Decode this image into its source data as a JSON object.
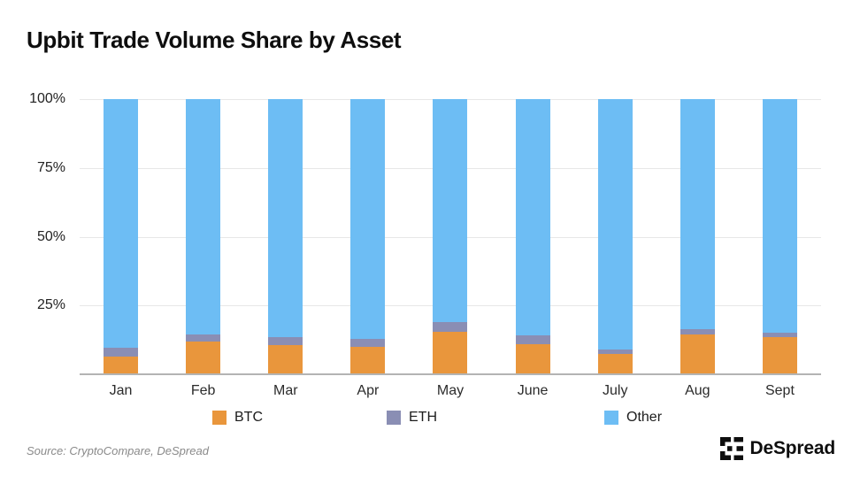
{
  "title": "Upbit Trade Volume Share by Asset",
  "source_note": "Source: CryptoCompare, DeSpread",
  "brand": {
    "name": "DeSpread"
  },
  "colors": {
    "btc": "#e9963c",
    "eth": "#8a8eb4",
    "other": "#6dbdf4",
    "grid": "#e7e7e7",
    "axis": "#b4b4b4"
  },
  "chart_data": {
    "type": "bar",
    "stacked": true,
    "title": "Upbit Trade Volume Share by Asset",
    "categories": [
      "Jan",
      "Feb",
      "Mar",
      "Apr",
      "May",
      "June",
      "July",
      "Aug",
      "Sept"
    ],
    "series": [
      {
        "name": "BTC",
        "color_key": "btc",
        "values": [
          6.5,
          12,
          10.5,
          10,
          15.5,
          11,
          7.5,
          14.5,
          13.5
        ]
      },
      {
        "name": "ETH",
        "color_key": "eth",
        "values": [
          3,
          2.5,
          3,
          3,
          3.5,
          3,
          1.5,
          2,
          1.5
        ]
      },
      {
        "name": "Other",
        "color_key": "other",
        "values": [
          90.5,
          85.5,
          86.5,
          87,
          81,
          86,
          91,
          83.5,
          85
        ]
      }
    ],
    "xlabel": "",
    "ylabel": "",
    "ylim": [
      0,
      100
    ],
    "y_ticks": [
      {
        "label": "100%",
        "value": 100
      },
      {
        "label": "75%",
        "value": 75
      },
      {
        "label": "50%",
        "value": 50
      },
      {
        "label": "25%",
        "value": 25
      }
    ],
    "grid": true,
    "legend_position": "bottom",
    "legend": [
      "BTC",
      "ETH",
      "Other"
    ]
  }
}
